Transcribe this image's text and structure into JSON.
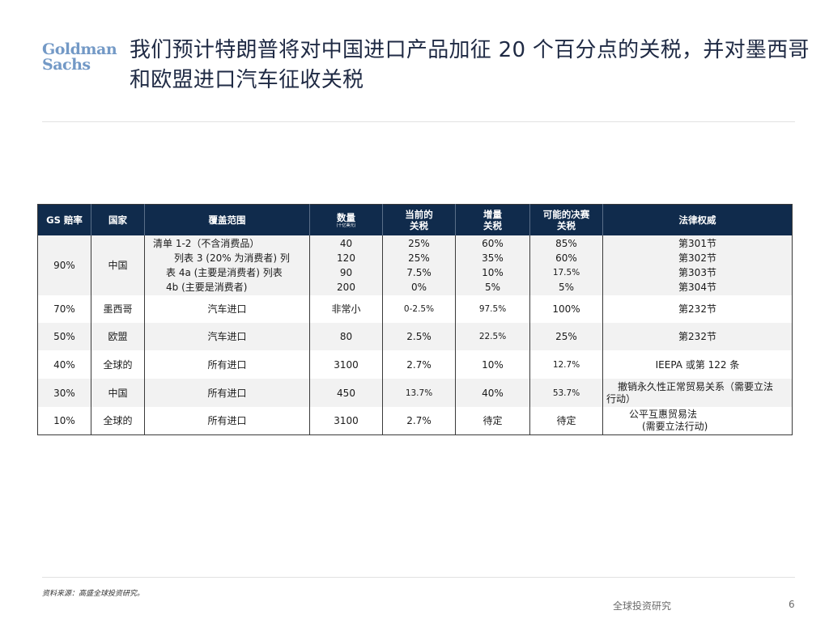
{
  "logo": {
    "line1": "Goldman",
    "line2": "Sachs"
  },
  "title": "我们预计特朗普将对中国进口产品加征 20 个百分点的关税，并对墨西哥和欧盟进口汽车征收关税",
  "table": {
    "headers": {
      "odds": "GS 赔率",
      "country": "国家",
      "coverage": "覆盖范围",
      "amount": "数量",
      "amount_unit": "(十亿美元)",
      "current_line1": "当前的",
      "current_line2": "关税",
      "increase_line1": "增量",
      "increase_line2": "关税",
      "final_line1": "可能的决赛",
      "final_line2": "关税",
      "law": "法律权威"
    },
    "china_block": {
      "odds": "90%",
      "country": "中国",
      "coverage": [
        "清单 1-2（不含消费品）",
        "列表 3 (20% 为消费者) 列",
        "表 4a (主要是消费者) 列表",
        "4b (主要是消费者)"
      ],
      "amount": [
        "40",
        "120",
        "90",
        "200"
      ],
      "current": [
        "25%",
        "25%",
        "7.5%",
        "0%"
      ],
      "increase": [
        "60%",
        "35%",
        "10%",
        "5%"
      ],
      "final": [
        "85%",
        "60%",
        "17.5%",
        "5%"
      ],
      "law": [
        "第301节",
        "第302节",
        "第303节",
        "第304节"
      ]
    },
    "rows": [
      {
        "odds": "70%",
        "country": "墨西哥",
        "coverage": "汽车进口",
        "amount": "非常小",
        "current": "0-2.5%",
        "increase": "97.5%",
        "final": "100%",
        "law": "第232节"
      },
      {
        "odds": "50%",
        "country": "欧盟",
        "coverage": "汽车进口",
        "amount": "80",
        "current": "2.5%",
        "increase": "22.5%",
        "final": "25%",
        "law": "第232节"
      },
      {
        "odds": "40%",
        "country": "全球的",
        "coverage": "所有进口",
        "amount": "3100",
        "current": "2.7%",
        "increase": "10%",
        "final": "12.7%",
        "law": "IEEPA 或第 122 条"
      },
      {
        "odds": "30%",
        "country": "中国",
        "coverage": "所有进口",
        "amount": "450",
        "current": "13.7%",
        "increase": "40%",
        "final": "53.7%",
        "law_lines": [
          "撤销永久性正常贸易关系（需要立法",
          "行动）"
        ]
      },
      {
        "odds": "10%",
        "country": "全球的",
        "coverage": "所有进口",
        "amount": "3100",
        "current": "2.7%",
        "increase": "待定",
        "final": "待定",
        "law_lines": [
          "公平互惠贸易法",
          "(需要立法行动)"
        ]
      }
    ]
  },
  "footer": {
    "source": "资料来源：高盛全球投资研究。",
    "label": "全球投资研究",
    "page": "6"
  }
}
